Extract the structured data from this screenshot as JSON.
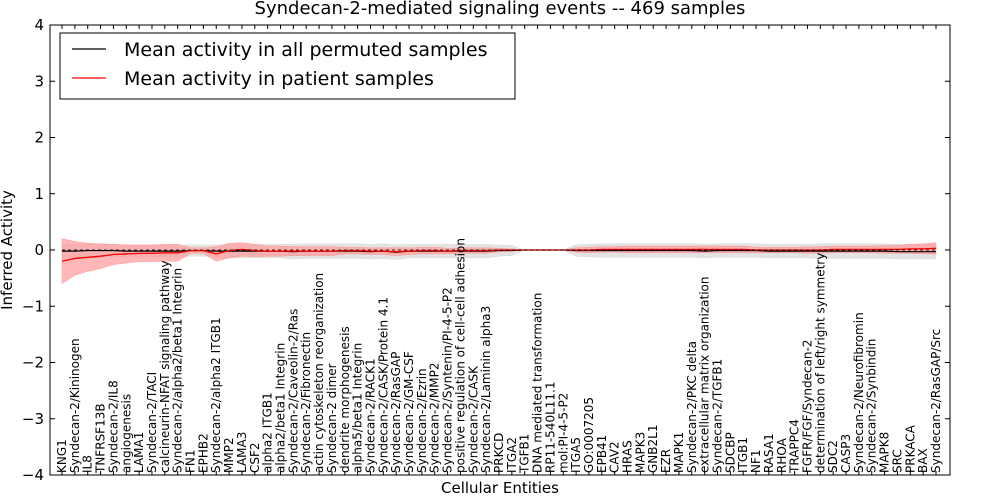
{
  "chart_data": {
    "type": "line",
    "title": "Syndecan-2-mediated signaling events -- 469 samples",
    "xlabel": "Cellular Entities",
    "ylabel": "Inferred Activity",
    "ylim": [
      -4,
      4
    ],
    "yticks": [
      -4,
      -3,
      -2,
      -1,
      0,
      1,
      2,
      3,
      4
    ],
    "ytick_labels": [
      "−4",
      "−3",
      "−2",
      "−1",
      "0",
      "1",
      "2",
      "3",
      "4"
    ],
    "legend_position": "top-left",
    "categories": [
      "KNG1",
      "Syndecan-2/Kininogen",
      "IL8",
      "TNFRSF13B",
      "Syndecan-2/IL8",
      "angiogenesis",
      "LAMA1",
      "Syndecan-2/TACI",
      "calcineurin-NFAT signaling pathway",
      "Syndecan-2/alpha2/beta1 Integrin",
      "FN1",
      "EPHB2",
      "Syndecan-2/alpha2 ITGB1",
      "MMP2",
      "LAMA3",
      "CSF2",
      "alpha2 ITGB1",
      "alpha2/beta1 Integrin",
      "Syndecan-2/Caveolin-2/Ras",
      "Syndecan-2/Fibronectin",
      "actin cytoskeleton reorganization",
      "Syndecan-2 dimer",
      "dendrite morphogenesis",
      "alpha5/beta1 Integrin",
      "Syndecan-2/RACK1",
      "Syndecan-2/CASK/Protein 4.1",
      "Syndecan-2/RasGAP",
      "Syndecan-2/GM-CSF",
      "Syndecan-2/Ezrin",
      "Syndecan-2/MMP2",
      "Syndecan-2/Syntenin/PI-4-5-P2",
      "positive regulation of cell-cell adhesion",
      "Syndecan-2/CASK",
      "Syndecan-2/Laminin alpha3",
      "PRKCD",
      "ITGA2",
      "TGFB1",
      "DNA mediated transformation",
      "RP11-540L11.1",
      "mol:PI-4-5-P2",
      "ITGA5",
      "GO:0007205",
      "EPB41",
      "CAV2",
      "HRAS",
      "MAPK3",
      "GNB2L1",
      "EZR",
      "MAPK1",
      "Syndecan-2/PKC delta",
      "extracellular matrix organization",
      "Syndecan-2/TGFB1",
      "SDCBP",
      "ITGB1",
      "NF1",
      "RASA1",
      "RHOA",
      "TRAPPC4",
      "FGFR/FGF/Syndecan-2",
      "determination of left/right symmetry",
      "SDC2",
      "CASP3",
      "Syndecan-2/Neurofibromin",
      "Syndecan-2/Synbindin",
      "MAPK8",
      "SRC",
      "PRKACA",
      "BAX",
      "Syndecan-2/RasGAP/Src"
    ],
    "series": [
      {
        "name": "Mean activity in all permuted samples",
        "color": "#000000",
        "band_color": "#d9d9d9",
        "values": [
          -0.02,
          -0.02,
          -0.01,
          -0.01,
          -0.01,
          -0.02,
          -0.02,
          -0.02,
          -0.02,
          -0.02,
          -0.01,
          -0.01,
          -0.02,
          -0.02,
          -0.02,
          -0.02,
          -0.02,
          -0.02,
          -0.03,
          -0.02,
          -0.02,
          -0.02,
          -0.02,
          -0.02,
          -0.03,
          -0.02,
          -0.04,
          -0.02,
          -0.02,
          -0.02,
          -0.02,
          -0.02,
          -0.02,
          -0.02,
          -0.01,
          -0.01,
          0,
          0,
          0,
          0,
          -0.01,
          -0.01,
          -0.01,
          -0.01,
          -0.01,
          -0.01,
          -0.01,
          -0.01,
          -0.01,
          -0.01,
          -0.02,
          -0.01,
          -0.01,
          -0.01,
          -0.01,
          -0.02,
          -0.02,
          -0.02,
          -0.02,
          -0.02,
          -0.02,
          -0.02,
          -0.02,
          -0.02,
          -0.02,
          -0.03,
          -0.03,
          -0.03,
          -0.03
        ],
        "band": [
          0.12,
          0.12,
          0.11,
          0.11,
          0.11,
          0.11,
          0.11,
          0.11,
          0.11,
          0.11,
          0.1,
          0.1,
          0.11,
          0.12,
          0.12,
          0.12,
          0.12,
          0.12,
          0.13,
          0.13,
          0.13,
          0.13,
          0.13,
          0.13,
          0.13,
          0.13,
          0.13,
          0.12,
          0.12,
          0.12,
          0.12,
          0.12,
          0.12,
          0.12,
          0.1,
          0.09,
          0,
          0,
          0,
          0,
          0.1,
          0.11,
          0.12,
          0.12,
          0.12,
          0.12,
          0.12,
          0.12,
          0.12,
          0.12,
          0.12,
          0.12,
          0.12,
          0.12,
          0.12,
          0.12,
          0.12,
          0.12,
          0.12,
          0.13,
          0.13,
          0.13,
          0.13,
          0.13,
          0.13,
          0.13,
          0.13,
          0.13,
          0.13
        ]
      },
      {
        "name": "Mean activity in patient samples",
        "color": "#ff0000",
        "band_color": "#ff9999",
        "values": [
          -0.2,
          -0.15,
          -0.13,
          -0.11,
          -0.08,
          -0.07,
          -0.06,
          -0.06,
          -0.05,
          -0.05,
          -0.01,
          -0.01,
          -0.07,
          -0.01,
          0.01,
          -0.01,
          -0.02,
          -0.02,
          -0.02,
          -0.02,
          -0.02,
          -0.02,
          -0.01,
          -0.01,
          -0.02,
          -0.02,
          -0.03,
          -0.02,
          -0.01,
          -0.01,
          -0.02,
          -0.01,
          -0.01,
          -0.01,
          0,
          0,
          0,
          0,
          0,
          0,
          0,
          0,
          0.01,
          0.01,
          0.01,
          0.01,
          0.01,
          0.01,
          0.01,
          0.01,
          0.01,
          0.01,
          0.01,
          0.01,
          0,
          0,
          0,
          0,
          0,
          0,
          0.01,
          0.01,
          0.01,
          0.01,
          0.01,
          0.01,
          0.02,
          0.02,
          0.03
        ],
        "band": [
          0.4,
          0.3,
          0.25,
          0.22,
          0.18,
          0.16,
          0.15,
          0.15,
          0.15,
          0.15,
          0.05,
          0.05,
          0.13,
          0.13,
          0.12,
          0.11,
          0.09,
          0.09,
          0.08,
          0.08,
          0.08,
          0.08,
          0.06,
          0.06,
          0.06,
          0.06,
          0.07,
          0.06,
          0.06,
          0.06,
          0.05,
          0.05,
          0.05,
          0.05,
          0.03,
          0.02,
          0,
          0,
          0,
          0,
          0.04,
          0.05,
          0.05,
          0.05,
          0.06,
          0.06,
          0.06,
          0.06,
          0.06,
          0.06,
          0.06,
          0.06,
          0.06,
          0.06,
          0.05,
          0.05,
          0.05,
          0.05,
          0.06,
          0.06,
          0.06,
          0.06,
          0.06,
          0.06,
          0.07,
          0.07,
          0.08,
          0.09,
          0.1
        ]
      }
    ]
  }
}
